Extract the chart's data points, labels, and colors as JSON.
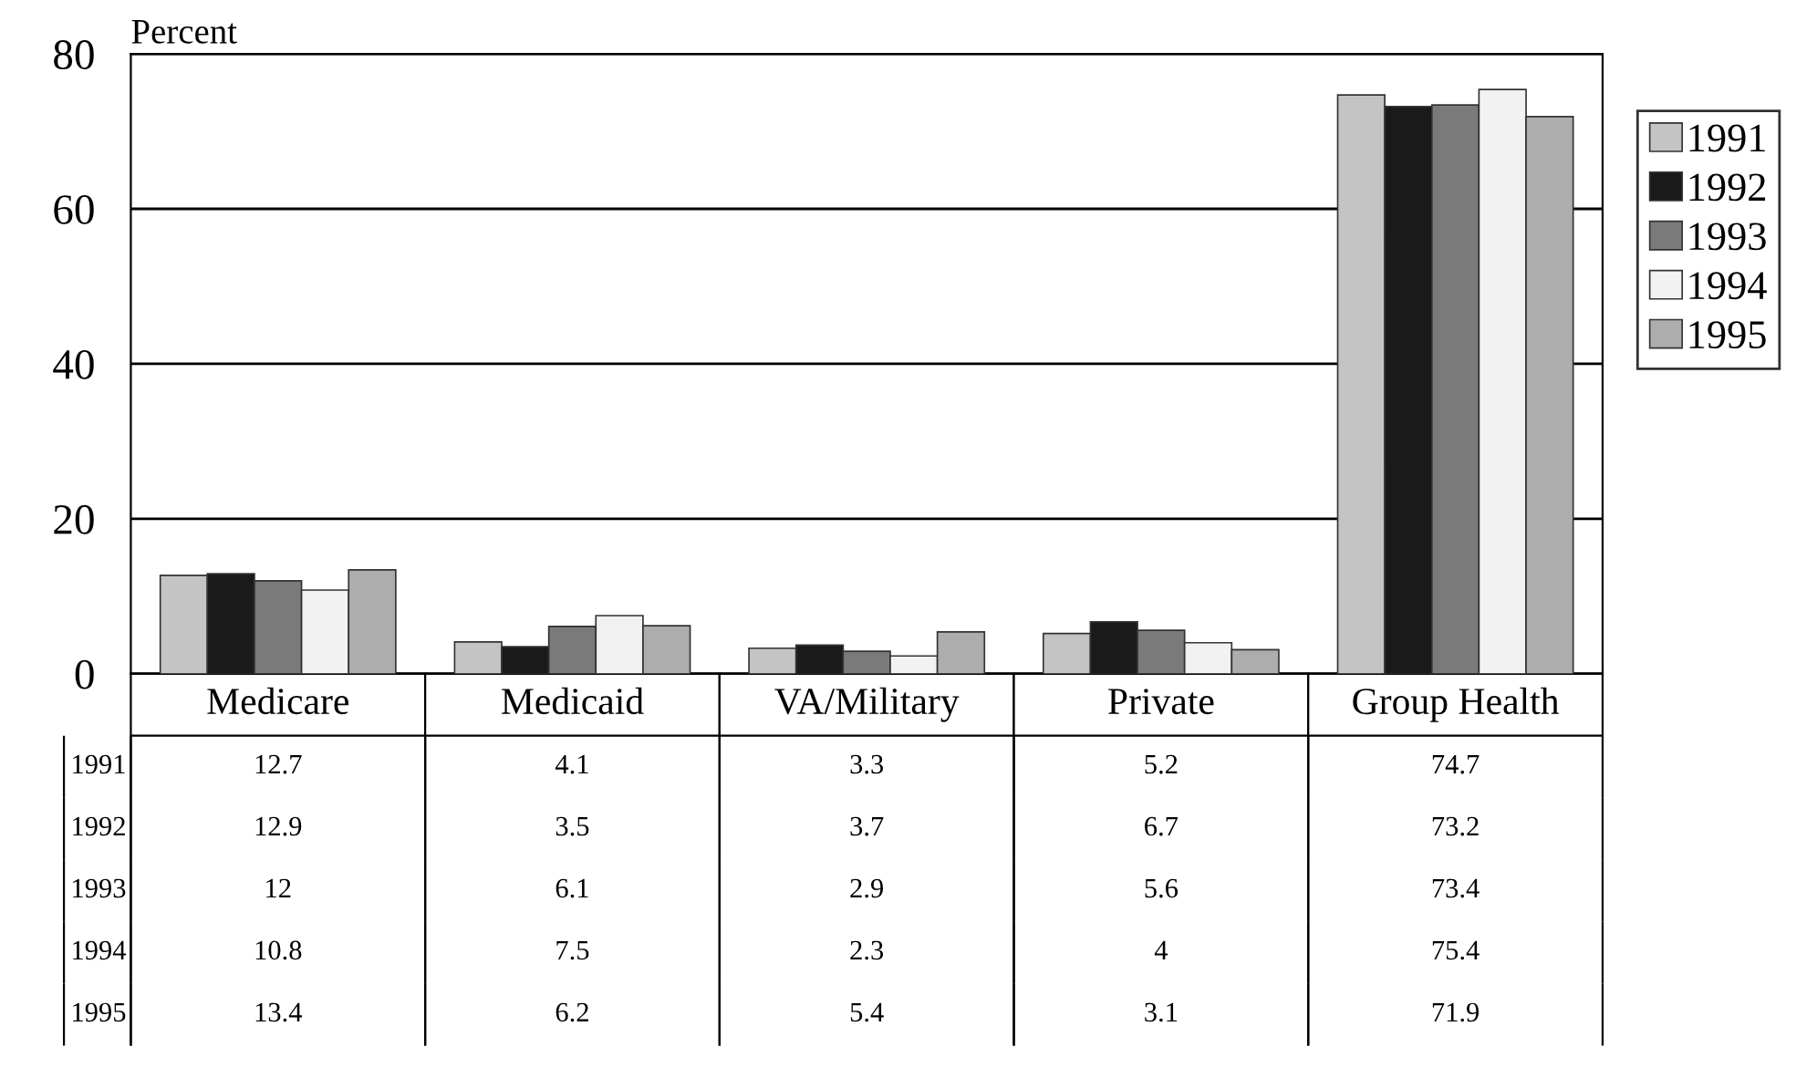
{
  "chart_data": {
    "type": "bar",
    "ylabel": "Percent",
    "categories": [
      "Medicare",
      "Medicaid",
      "VA/Military",
      "Private",
      "Group Health"
    ],
    "series": [
      {
        "name": "1991",
        "color": "#c4c4c4",
        "values": [
          12.7,
          4.1,
          3.3,
          5.2,
          74.7
        ]
      },
      {
        "name": "1992",
        "color": "#1a1a1a",
        "values": [
          12.9,
          3.5,
          3.7,
          6.7,
          73.2
        ]
      },
      {
        "name": "1993",
        "color": "#7a7a7a",
        "values": [
          12,
          6.1,
          2.9,
          5.6,
          73.4
        ]
      },
      {
        "name": "1994",
        "color": "#f2f2f2",
        "values": [
          10.8,
          7.5,
          2.3,
          4,
          75.4
        ]
      },
      {
        "name": "1995",
        "color": "#adadad",
        "values": [
          13.4,
          6.2,
          5.4,
          3.1,
          71.9
        ]
      }
    ],
    "ylim": [
      0,
      80
    ],
    "yticks": [
      0,
      20,
      40,
      60,
      80
    ],
    "grid": "y",
    "legend": "right",
    "data_labels": true
  }
}
